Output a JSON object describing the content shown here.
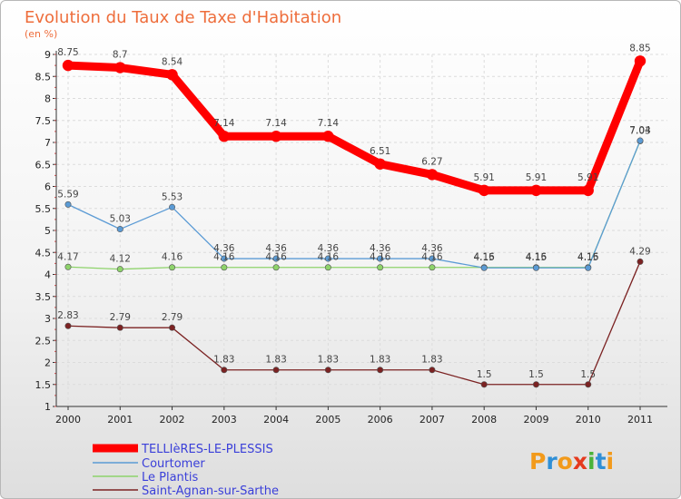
{
  "colors": {
    "title": "#ee6d3b",
    "legend_text": "#3a3fd9",
    "logo": [
      "#f29a1b",
      "#2f8fd6",
      "#f29a1b",
      "#e53a1e",
      "#4bb33a",
      "#2f8fd6"
    ]
  },
  "logo_text": "Proxiti",
  "chart_data": {
    "type": "line",
    "title": "Evolution du Taux de Taxe d'Habitation",
    "ylabel": "(en %)",
    "x": [
      "2000",
      "2001",
      "2002",
      "2003",
      "2004",
      "2005",
      "2006",
      "2007",
      "2008",
      "2009",
      "2010",
      "2011"
    ],
    "ylim": [
      1,
      9
    ],
    "yticks": [
      "1",
      "1.5",
      "2",
      "2.5",
      "3",
      "3.5",
      "4",
      "4.5",
      "5",
      "5.5",
      "6",
      "6.5",
      "7",
      "7.5",
      "8",
      "8.5",
      "9"
    ],
    "grid": true,
    "legend_position": "bottom-left",
    "series": [
      {
        "name": "TELLIèRES-LE-PLESSIS",
        "color": "#ff0000",
        "values": [
          8.75,
          8.7,
          8.54,
          7.14,
          7.14,
          7.14,
          6.51,
          6.27,
          5.91,
          5.91,
          5.91,
          8.85
        ],
        "labels": [
          "8.75",
          "8.7",
          "8.54",
          "7.14",
          "7.14",
          "7.14",
          "6.51",
          "6.27",
          "5.91",
          "5.91",
          "5.91",
          "8.85"
        ]
      },
      {
        "name": "Courtomer",
        "color": "#5b9bd5",
        "values": [
          5.59,
          5.03,
          5.53,
          4.36,
          4.36,
          4.36,
          4.36,
          4.36,
          4.15,
          4.15,
          4.15,
          7.04
        ],
        "labels": [
          "5.59",
          "5.03",
          "5.53",
          "4.36",
          "4.36",
          "4.36",
          "4.36",
          "4.36",
          "4.15",
          "4.15",
          "4.15",
          "7.04"
        ]
      },
      {
        "name": "Le Plantis",
        "color": "#8ed36b",
        "values": [
          4.17,
          4.12,
          4.16,
          4.16,
          4.16,
          4.16,
          4.16,
          4.16,
          4.16,
          4.16,
          4.16,
          7.03
        ],
        "labels": [
          "4.17",
          "4.12",
          "4.16",
          "4.16",
          "4.16",
          "4.16",
          "4.16",
          "4.16",
          "4.16",
          "4.16",
          "4.16",
          "7.03"
        ]
      },
      {
        "name": "Saint-Agnan-sur-Sarthe",
        "color": "#7b2222",
        "values": [
          2.83,
          2.79,
          2.79,
          1.83,
          1.83,
          1.83,
          1.83,
          1.83,
          1.5,
          1.5,
          1.5,
          4.29
        ],
        "labels": [
          "2.83",
          "2.79",
          "2.79",
          "1.83",
          "1.83",
          "1.83",
          "1.83",
          "1.83",
          "1.5",
          "1.5",
          "1.5",
          "4.29"
        ]
      }
    ]
  }
}
